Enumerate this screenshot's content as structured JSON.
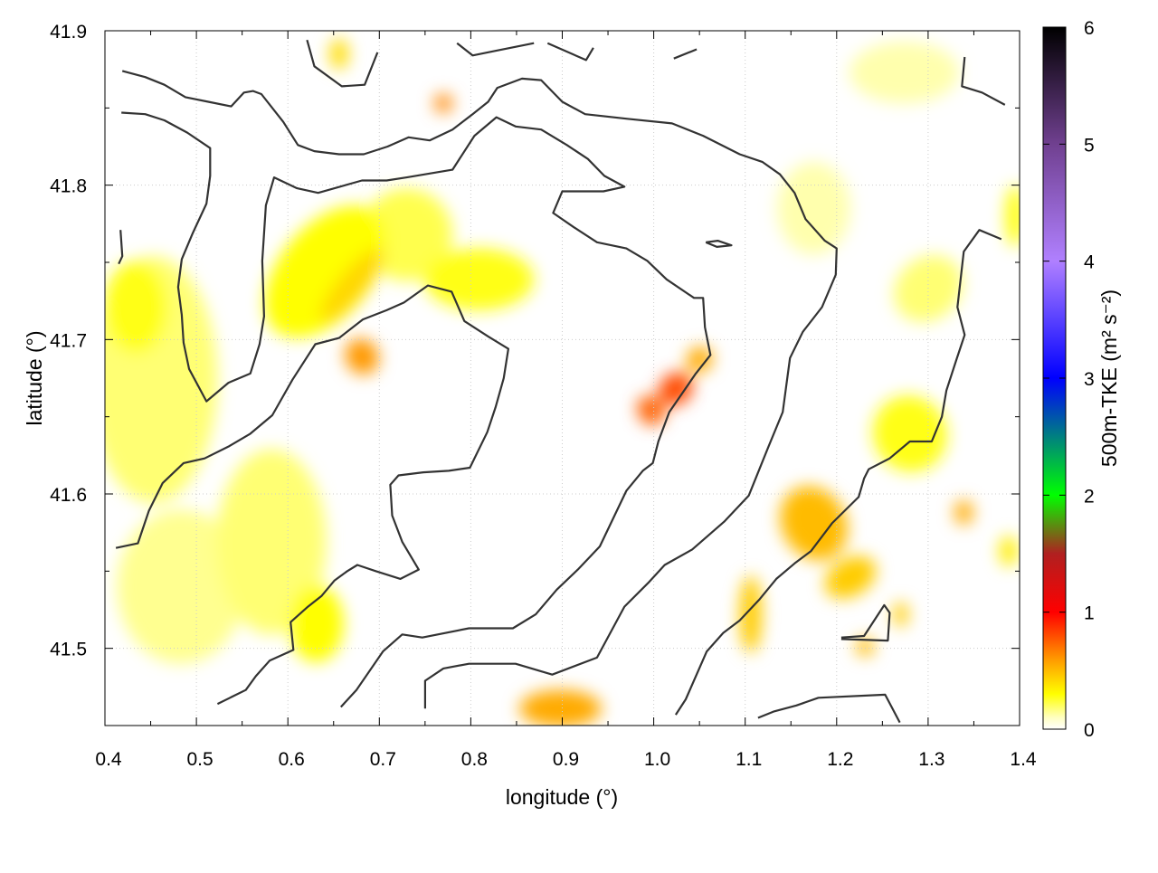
{
  "chart_data": {
    "type": "heatmap",
    "xlabel": "longitude (°)",
    "ylabel": "latitude (°)",
    "colorbar_label": "500m-TKE (m² s⁻²)",
    "colorbar_label_parts": {
      "main": "500m-TKE (m",
      "sup1": "2",
      "mid": " s",
      "sup2": "-2",
      "end": ")"
    },
    "xlim": [
      0.4,
      1.4
    ],
    "ylim": [
      41.45,
      41.9
    ],
    "clim": [
      0,
      6
    ],
    "xticks": [
      "0.4",
      "0.5",
      "0.6",
      "0.7",
      "0.8",
      "0.9",
      "1.0",
      "1.1",
      "1.2",
      "1.3",
      "1.4"
    ],
    "yticks": [
      "41.5",
      "41.6",
      "41.7",
      "41.8",
      "41.9"
    ],
    "cticks": [
      "0",
      "1",
      "2",
      "3",
      "4",
      "5",
      "6"
    ],
    "grid": true,
    "colormap": [
      {
        "v": 0,
        "c": "#ffffff"
      },
      {
        "v": 0.1,
        "c": "#ffffc0"
      },
      {
        "v": 0.3,
        "c": "#ffff00"
      },
      {
        "v": 0.6,
        "c": "#ff9900"
      },
      {
        "v": 1,
        "c": "#ff0000"
      },
      {
        "v": 1.5,
        "c": "#b02020"
      },
      {
        "v": 2,
        "c": "#00ff00"
      },
      {
        "v": 2.5,
        "c": "#008080"
      },
      {
        "v": 3,
        "c": "#0000ff"
      },
      {
        "v": 4,
        "c": "#b080ff"
      },
      {
        "v": 5,
        "c": "#704090"
      },
      {
        "v": 6,
        "c": "#000000"
      }
    ],
    "contour_color": "#333333",
    "field_blobs": [
      {
        "lon": 0.453,
        "lat": 41.674,
        "rlon": 0.07,
        "rlat": 0.08,
        "value": 0.18,
        "angle": 0
      },
      {
        "lon": 0.434,
        "lat": 41.721,
        "rlon": 0.035,
        "rlat": 0.03,
        "value": 0.28,
        "angle": 0
      },
      {
        "lon": 0.483,
        "lat": 41.54,
        "rlon": 0.07,
        "rlat": 0.05,
        "value": 0.15,
        "angle": 0
      },
      {
        "lon": 0.582,
        "lat": 41.569,
        "rlon": 0.06,
        "rlat": 0.06,
        "value": 0.18,
        "angle": 0
      },
      {
        "lon": 0.631,
        "lat": 41.516,
        "rlon": 0.03,
        "rlat": 0.025,
        "value": 0.3,
        "angle": 0
      },
      {
        "lon": 0.641,
        "lat": 41.744,
        "rlon": 0.05,
        "rlat": 0.05,
        "value": 0.3,
        "angle": 40
      },
      {
        "lon": 0.67,
        "lat": 41.735,
        "rlon": 0.015,
        "rlat": 0.03,
        "value": 0.42,
        "angle": 40
      },
      {
        "lon": 0.681,
        "lat": 41.689,
        "rlon": 0.018,
        "rlat": 0.012,
        "value": 0.6,
        "angle": -30
      },
      {
        "lon": 0.73,
        "lat": 41.768,
        "rlon": 0.05,
        "rlat": 0.03,
        "value": 0.22,
        "angle": 0
      },
      {
        "lon": 0.809,
        "lat": 41.739,
        "rlon": 0.06,
        "rlat": 0.02,
        "value": 0.28,
        "angle": 0
      },
      {
        "lon": 0.77,
        "lat": 41.853,
        "rlon": 0.01,
        "rlat": 0.006,
        "value": 0.65,
        "angle": 0
      },
      {
        "lon": 0.656,
        "lat": 41.885,
        "rlon": 0.01,
        "rlat": 0.01,
        "value": 0.4,
        "angle": 0
      },
      {
        "lon": 0.898,
        "lat": 41.461,
        "rlon": 0.045,
        "rlat": 0.012,
        "value": 0.55,
        "angle": 0
      },
      {
        "lon": 0.997,
        "lat": 41.654,
        "rlon": 0.014,
        "rlat": 0.01,
        "value": 0.75,
        "angle": -35
      },
      {
        "lon": 1.024,
        "lat": 41.668,
        "rlon": 0.02,
        "rlat": 0.01,
        "value": 0.8,
        "angle": -40
      },
      {
        "lon": 1.05,
        "lat": 41.687,
        "rlon": 0.015,
        "rlat": 0.008,
        "value": 0.55,
        "angle": -45
      },
      {
        "lon": 1.106,
        "lat": 41.522,
        "rlon": 0.012,
        "rlat": 0.025,
        "value": 0.45,
        "angle": 0
      },
      {
        "lon": 1.175,
        "lat": 41.581,
        "rlon": 0.035,
        "rlat": 0.025,
        "value": 0.5,
        "angle": -30
      },
      {
        "lon": 1.215,
        "lat": 41.546,
        "rlon": 0.03,
        "rlat": 0.012,
        "value": 0.45,
        "angle": -30
      },
      {
        "lon": 1.231,
        "lat": 41.501,
        "rlon": 0.01,
        "rlat": 0.006,
        "value": 0.5,
        "angle": 0
      },
      {
        "lon": 1.27,
        "lat": 41.522,
        "rlon": 0.008,
        "rlat": 0.008,
        "value": 0.45,
        "angle": 0
      },
      {
        "lon": 1.339,
        "lat": 41.588,
        "rlon": 0.01,
        "rlat": 0.008,
        "value": 0.55,
        "angle": 0
      },
      {
        "lon": 1.388,
        "lat": 41.563,
        "rlon": 0.01,
        "rlat": 0.01,
        "value": 0.35,
        "angle": 0
      },
      {
        "lon": 1.28,
        "lat": 41.639,
        "rlon": 0.04,
        "rlat": 0.025,
        "value": 0.28,
        "angle": -30
      },
      {
        "lon": 1.3,
        "lat": 41.733,
        "rlon": 0.04,
        "rlat": 0.02,
        "value": 0.18,
        "angle": -40
      },
      {
        "lon": 1.175,
        "lat": 41.785,
        "rlon": 0.04,
        "rlat": 0.03,
        "value": 0.12,
        "angle": 0
      },
      {
        "lon": 1.274,
        "lat": 41.873,
        "rlon": 0.06,
        "rlat": 0.02,
        "value": 0.12,
        "angle": 0
      },
      {
        "lon": 1.395,
        "lat": 41.78,
        "rlon": 0.01,
        "rlat": 0.02,
        "value": 0.3,
        "angle": 0
      }
    ],
    "contours": [
      [
        [
          0.419,
          41.874
        ],
        [
          0.444,
          41.87
        ],
        [
          0.465,
          41.865
        ],
        [
          0.488,
          41.857
        ],
        [
          0.513,
          41.854
        ],
        [
          0.538,
          41.851
        ],
        [
          0.552,
          41.86
        ],
        [
          0.562,
          41.861
        ],
        [
          0.571,
          41.859
        ],
        [
          0.595,
          41.841
        ],
        [
          0.611,
          41.826
        ],
        [
          0.629,
          41.822
        ],
        [
          0.656,
          41.82
        ],
        [
          0.683,
          41.82
        ],
        [
          0.709,
          41.825
        ],
        [
          0.732,
          41.831
        ],
        [
          0.755,
          41.829
        ],
        [
          0.78,
          41.836
        ],
        [
          0.802,
          41.846
        ],
        [
          0.819,
          41.854
        ],
        [
          0.829,
          41.863
        ],
        [
          0.856,
          41.869
        ],
        [
          0.877,
          41.868
        ],
        [
          0.9,
          41.854
        ],
        [
          0.925,
          41.846
        ],
        [
          0.971,
          41.843
        ],
        [
          1.02,
          41.84
        ],
        [
          1.054,
          41.832
        ],
        [
          1.094,
          41.82
        ],
        [
          1.119,
          41.815
        ],
        [
          1.138,
          41.807
        ],
        [
          1.154,
          41.795
        ],
        [
          1.166,
          41.778
        ],
        [
          1.187,
          41.764
        ],
        [
          1.2,
          41.759
        ],
        [
          1.199,
          41.742
        ],
        [
          1.184,
          41.721
        ],
        [
          1.163,
          41.705
        ],
        [
          1.149,
          41.688
        ],
        [
          1.141,
          41.653
        ],
        [
          1.125,
          41.63
        ],
        [
          1.104,
          41.599
        ],
        [
          1.077,
          41.582
        ],
        [
          1.042,
          41.564
        ],
        [
          1.012,
          41.554
        ],
        [
          0.995,
          41.543
        ],
        [
          0.968,
          41.527
        ],
        [
          0.938,
          41.494
        ],
        [
          0.889,
          41.483
        ],
        [
          0.849,
          41.49
        ],
        [
          0.798,
          41.49
        ],
        [
          0.77,
          41.487
        ],
        [
          0.75,
          41.479
        ],
        [
          0.75,
          41.461
        ]
      ],
      [
        [
          0.418,
          41.847
        ],
        [
          0.444,
          41.846
        ],
        [
          0.465,
          41.842
        ],
        [
          0.49,
          41.834
        ],
        [
          0.515,
          41.824
        ],
        [
          0.515,
          41.806
        ],
        [
          0.511,
          41.788
        ],
        [
          0.496,
          41.769
        ],
        [
          0.484,
          41.752
        ],
        [
          0.48,
          41.734
        ],
        [
          0.484,
          41.716
        ],
        [
          0.486,
          41.698
        ],
        [
          0.492,
          41.681
        ],
        [
          0.511,
          41.66
        ],
        [
          0.535,
          41.672
        ],
        [
          0.559,
          41.678
        ],
        [
          0.569,
          41.697
        ],
        [
          0.574,
          41.715
        ],
        [
          0.572,
          41.751
        ],
        [
          0.576,
          41.787
        ],
        [
          0.585,
          41.805
        ],
        [
          0.61,
          41.798
        ],
        [
          0.633,
          41.795
        ],
        [
          0.681,
          41.803
        ],
        [
          0.708,
          41.803
        ],
        [
          0.73,
          41.805
        ],
        [
          0.78,
          41.81
        ],
        [
          0.804,
          41.832
        ],
        [
          0.828,
          41.844
        ],
        [
          0.849,
          41.838
        ],
        [
          0.877,
          41.836
        ],
        [
          0.905,
          41.826
        ],
        [
          0.928,
          41.817
        ],
        [
          0.946,
          41.806
        ],
        [
          0.968,
          41.799
        ],
        [
          0.945,
          41.796
        ],
        [
          0.9,
          41.796
        ],
        [
          0.89,
          41.782
        ],
        [
          0.912,
          41.773
        ],
        [
          0.938,
          41.763
        ],
        [
          0.97,
          41.759
        ],
        [
          0.993,
          41.751
        ],
        [
          1.014,
          41.739
        ],
        [
          1.044,
          41.727
        ],
        [
          1.054,
          41.727
        ],
        [
          1.056,
          41.708
        ],
        [
          1.062,
          41.69
        ],
        [
          1.046,
          41.678
        ],
        [
          1.017,
          41.653
        ],
        [
          1.005,
          41.634
        ],
        [
          0.999,
          41.62
        ],
        [
          0.988,
          41.615
        ],
        [
          0.97,
          41.602
        ],
        [
          0.941,
          41.566
        ],
        [
          0.917,
          41.551
        ],
        [
          0.894,
          41.538
        ],
        [
          0.871,
          41.522
        ],
        [
          0.846,
          41.513
        ],
        [
          0.798,
          41.513
        ],
        [
          0.747,
          41.507
        ],
        [
          0.725,
          41.509
        ],
        [
          0.704,
          41.498
        ],
        [
          0.675,
          41.473
        ],
        [
          0.658,
          41.462
        ]
      ],
      [
        [
          0.412,
          41.565
        ],
        [
          0.436,
          41.568
        ],
        [
          0.448,
          41.589
        ],
        [
          0.463,
          41.607
        ],
        [
          0.486,
          41.62
        ],
        [
          0.509,
          41.623
        ],
        [
          0.536,
          41.631
        ],
        [
          0.559,
          41.639
        ],
        [
          0.583,
          41.651
        ],
        [
          0.605,
          41.674
        ],
        [
          0.63,
          41.697
        ],
        [
          0.656,
          41.701
        ],
        [
          0.682,
          41.713
        ],
        [
          0.708,
          41.719
        ],
        [
          0.727,
          41.724
        ],
        [
          0.753,
          41.735
        ],
        [
          0.779,
          41.731
        ],
        [
          0.793,
          41.712
        ],
        [
          0.819,
          41.702
        ],
        [
          0.841,
          41.694
        ],
        [
          0.836,
          41.675
        ],
        [
          0.827,
          41.656
        ],
        [
          0.818,
          41.64
        ],
        [
          0.799,
          41.617
        ],
        [
          0.776,
          41.615
        ],
        [
          0.748,
          41.614
        ],
        [
          0.721,
          41.612
        ],
        [
          0.712,
          41.606
        ],
        [
          0.714,
          41.586
        ],
        [
          0.725,
          41.569
        ],
        [
          0.743,
          41.551
        ],
        [
          0.723,
          41.545
        ],
        [
          0.696,
          41.55
        ],
        [
          0.676,
          41.554
        ],
        [
          0.665,
          41.55
        ],
        [
          0.651,
          41.544
        ],
        [
          0.637,
          41.534
        ],
        [
          0.622,
          41.527
        ],
        [
          0.603,
          41.517
        ],
        [
          0.606,
          41.499
        ],
        [
          0.58,
          41.492
        ],
        [
          0.565,
          41.482
        ],
        [
          0.554,
          41.473
        ],
        [
          0.523,
          41.464
        ]
      ],
      [
        [
          1.38,
          41.765
        ],
        [
          1.356,
          41.771
        ],
        [
          1.339,
          41.757
        ],
        [
          1.332,
          41.721
        ],
        [
          1.34,
          41.703
        ],
        [
          1.331,
          41.687
        ],
        [
          1.32,
          41.667
        ],
        [
          1.315,
          41.65
        ],
        [
          1.304,
          41.634
        ],
        [
          1.28,
          41.634
        ],
        [
          1.258,
          41.623
        ],
        [
          1.235,
          41.616
        ],
        [
          1.23,
          41.61
        ],
        [
          1.224,
          41.598
        ],
        [
          1.195,
          41.581
        ],
        [
          1.172,
          41.563
        ],
        [
          1.154,
          41.555
        ],
        [
          1.134,
          41.545
        ],
        [
          1.116,
          41.532
        ],
        [
          1.094,
          41.518
        ],
        [
          1.076,
          41.51
        ],
        [
          1.058,
          41.498
        ],
        [
          1.035,
          41.467
        ],
        [
          1.024,
          41.457
        ]
      ],
      [
        [
          0.621,
          41.894
        ],
        [
          0.629,
          41.877
        ],
        [
          0.659,
          41.864
        ],
        [
          0.684,
          41.865
        ],
        [
          0.698,
          41.886
        ]
      ],
      [
        [
          0.785,
          41.892
        ],
        [
          0.802,
          41.884
        ],
        [
          0.827,
          41.887
        ],
        [
          0.869,
          41.892
        ]
      ],
      [
        [
          0.884,
          41.892
        ],
        [
          0.926,
          41.881
        ],
        [
          0.934,
          41.889
        ]
      ],
      [
        [
          1.022,
          41.882
        ],
        [
          1.047,
          41.888
        ]
      ],
      [
        [
          1.34,
          41.883
        ],
        [
          1.337,
          41.864
        ],
        [
          1.359,
          41.86
        ],
        [
          1.384,
          41.852
        ]
      ],
      [
        [
          0.417,
          41.771
        ],
        [
          0.419,
          41.754
        ],
        [
          0.415,
          41.749
        ]
      ],
      [
        [
          1.057,
          41.763
        ],
        [
          1.07,
          41.764
        ],
        [
          1.085,
          41.761
        ],
        [
          1.069,
          41.76
        ],
        [
          1.057,
          41.763
        ]
      ],
      [
        [
          1.205,
          41.507
        ],
        [
          1.23,
          41.508
        ],
        [
          1.252,
          41.528
        ],
        [
          1.258,
          41.523
        ],
        [
          1.256,
          41.505
        ],
        [
          1.205,
          41.506
        ]
      ],
      [
        [
          1.114,
          41.455
        ],
        [
          1.131,
          41.459
        ],
        [
          1.156,
          41.463
        ],
        [
          1.18,
          41.468
        ],
        [
          1.253,
          41.47
        ],
        [
          1.269,
          41.452
        ]
      ]
    ]
  }
}
